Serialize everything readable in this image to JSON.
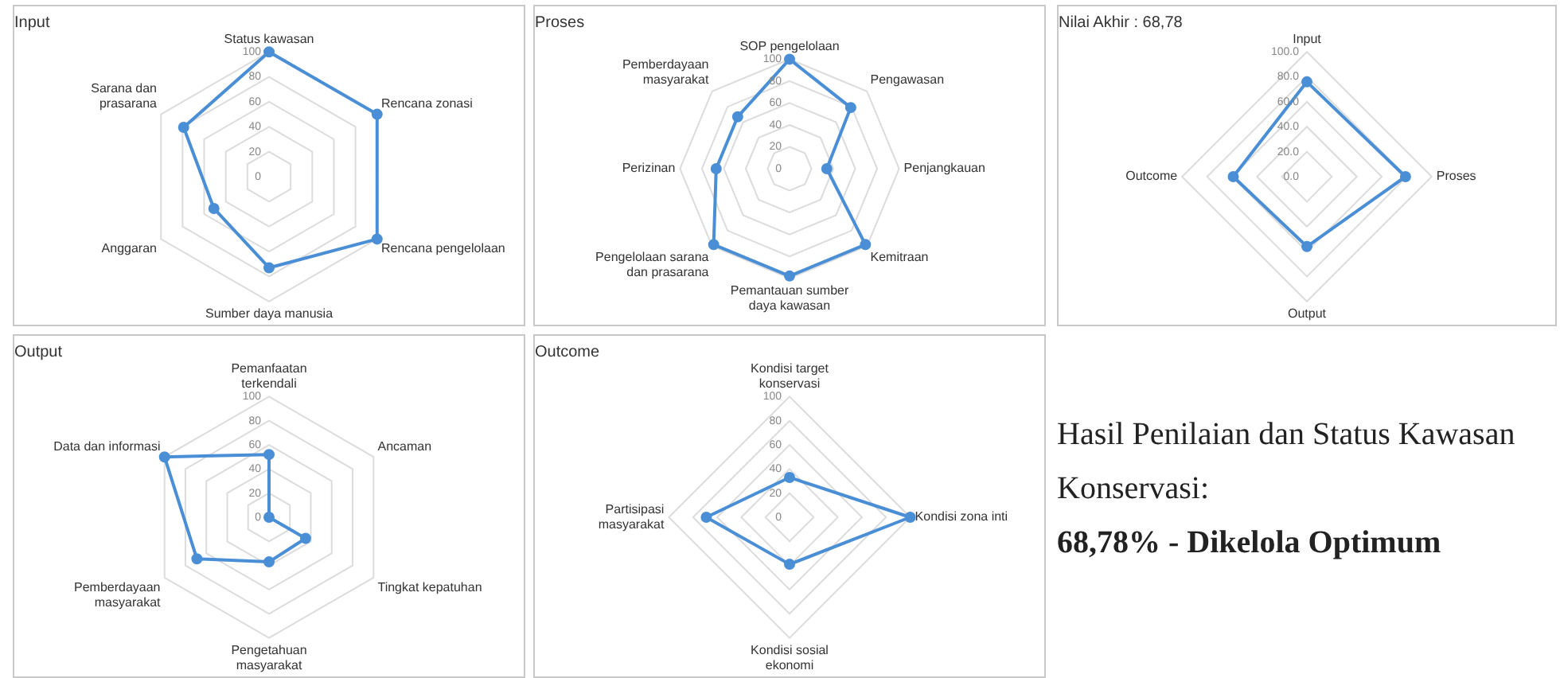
{
  "chart_data": [
    {
      "type": "radar",
      "title": "Input",
      "categories": [
        "Status kawasan",
        "Rencana zonasi",
        "Rencana pengelolaan",
        "Sumber daya manusia",
        "Anggaran",
        "Sarana dan prasarana"
      ],
      "series": [
        {
          "color": "#4a8fd6",
          "values": [
            100,
            100,
            100,
            73,
            51,
            79
          ]
        }
      ],
      "ylim": [
        0,
        100
      ],
      "yticks": [
        0,
        20,
        40,
        60,
        80,
        100
      ],
      "grid": true,
      "marker": "circle"
    },
    {
      "type": "radar",
      "title": "Proses",
      "categories": [
        "SOP pengelolaan",
        "Pengawasan",
        "Penjangkauan",
        "Kemitraan",
        "Pemantauan sumber daya kawasan",
        "Pengelolaan sarana dan prasarana",
        "Perizinan",
        "Pemberdayaan masyarakat"
      ],
      "series": [
        {
          "color": "#4a8fd6",
          "values": [
            100,
            79,
            34,
            98,
            98,
            98,
            67,
            67
          ]
        }
      ],
      "ylim": [
        0,
        100
      ],
      "yticks": [
        0,
        20,
        40,
        60,
        80,
        100
      ],
      "grid": true,
      "marker": "circle"
    },
    {
      "type": "radar",
      "title": "Nilai Akhir : 68,78",
      "categories": [
        "Input",
        "Proses",
        "Output",
        "Outcome"
      ],
      "series": [
        {
          "color": "#4a8fd6",
          "values": [
            76,
            79,
            56,
            59
          ]
        }
      ],
      "ylim": [
        0,
        100
      ],
      "yticks": [
        {
          "value": 0,
          "label": "0.0"
        },
        {
          "value": 20,
          "label": "20.0"
        },
        {
          "value": 40,
          "label": "40.0"
        },
        {
          "value": 60,
          "label": "60.0"
        },
        {
          "value": 80,
          "label": "80.0"
        },
        {
          "value": 100,
          "label": "100.0"
        }
      ],
      "grid": true,
      "marker": "circle"
    },
    {
      "type": "radar",
      "title": "Output",
      "categories": [
        "Pemanfaatan terkendali",
        "Ancaman",
        "Tingkat kepatuhan",
        "Pengetahuan masyarakat",
        "Pemberdayaan masyarakat",
        "Data dan informasi"
      ],
      "series": [
        {
          "color": "#4a8fd6",
          "values": [
            52,
            0,
            35,
            37,
            69,
            100
          ]
        }
      ],
      "ylim": [
        0,
        100
      ],
      "yticks": [
        0,
        20,
        40,
        60,
        80,
        100
      ],
      "grid": true,
      "marker": "circle"
    },
    {
      "type": "radar",
      "title": "Outcome",
      "categories": [
        "Kondisi target konservasi",
        "Kondisi zona inti",
        "Kondisi sosial ekonomi",
        "Partisipasi masyarakat"
      ],
      "series": [
        {
          "color": "#4a8fd6",
          "values": [
            33,
            100,
            39,
            69
          ]
        }
      ],
      "ylim": [
        0,
        100
      ],
      "yticks": [
        0,
        20,
        40,
        60,
        80,
        100
      ],
      "grid": true,
      "marker": "circle"
    },
    {
      "type": "other",
      "title": "Hasil Penilaian dan Status Kawasan Konservasi:",
      "subtitle": "68,78% - Dikelola Optimum"
    }
  ]
}
